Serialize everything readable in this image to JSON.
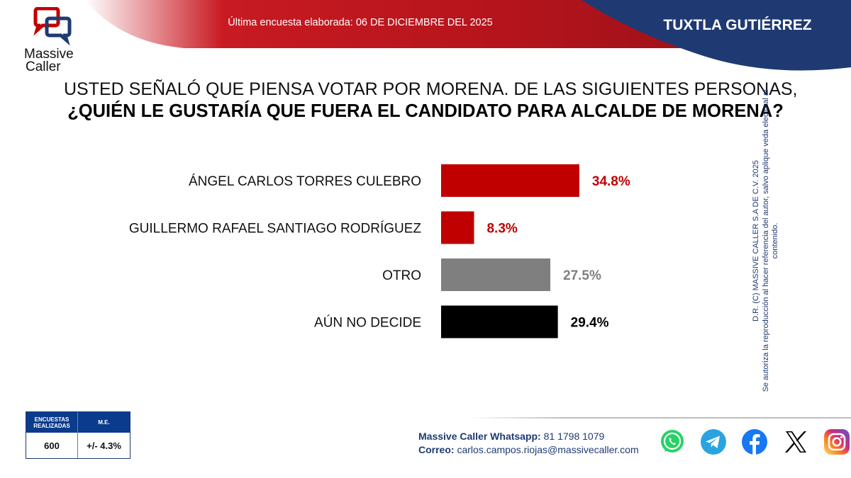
{
  "header": {
    "subtitle": "Última encuesta elaborada: 06 DE DICIEMBRE DEL 2025",
    "city": "TUXTLA GUTIÉRREZ"
  },
  "logo": {
    "line1": "Massive",
    "line2": "Caller"
  },
  "question": {
    "line1": "USTED SEÑALÓ QUE PIENSA VOTAR POR MORENA. DE LAS SIGUIENTES PERSONAS,",
    "line2": "¿QUIÉN LE GUSTARÍA QUE FUERA EL CANDIDATO PARA ALCALDE DE MORENA?"
  },
  "chart_data": {
    "type": "bar",
    "orientation": "horizontal",
    "title": "",
    "xlabel": "",
    "ylabel": "",
    "grid": false,
    "categories": [
      "ÁNGEL CARLOS TORRES CULEBRO",
      "GUILLERMO RAFAEL SANTIAGO RODRÍGUEZ",
      "OTRO",
      "AÚN NO DECIDE"
    ],
    "values": [
      34.8,
      8.3,
      27.5,
      29.4
    ],
    "value_labels": [
      "34.8%",
      "8.3%",
      "27.5%",
      "29.4%"
    ],
    "colors": [
      "#c00000",
      "#c00000",
      "#7f7f7f",
      "#000000"
    ],
    "xlim": [
      0,
      100
    ]
  },
  "legal": {
    "line1": "D.R. (C) MASSIVE CALLER S.A DE C.V. 2025",
    "line2": "Se autoriza la reproducción al hacer referencia del autor, salvo aplique veda electoral al contenido."
  },
  "sample": {
    "header_surveys": "ENCUESTAS REALIZADAS",
    "header_me": "M.E.",
    "surveys": "600",
    "me": "+/- 4.3%"
  },
  "contact": {
    "whatsapp_label": "Massive Caller Whatsapp:",
    "whatsapp_number": "81 1798 1079",
    "email_label": "Correo:",
    "email": "carlos.campos.riojas@massivecaller.com"
  },
  "social_icons": [
    "whatsapp-icon",
    "telegram-icon",
    "facebook-icon",
    "x-icon",
    "instagram-icon"
  ],
  "colors": {
    "brand_red": "#c00000",
    "brand_navy": "#1f3a73",
    "bar_gray": "#7f7f7f",
    "bar_black": "#000000"
  }
}
